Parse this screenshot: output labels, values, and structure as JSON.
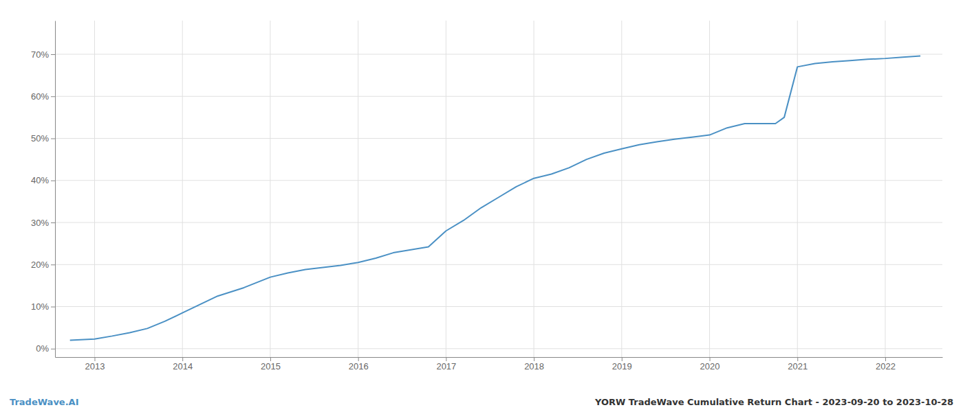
{
  "chart_data": {
    "type": "line",
    "title": "YORW TradeWave Cumulative Return Chart - 2023-09-20 to 2023-10-28",
    "annotations": [
      "TradeWave.AI"
    ],
    "x": [
      2012.72,
      2013.0,
      2013.2,
      2013.4,
      2013.6,
      2013.8,
      2014.0,
      2014.2,
      2014.4,
      2014.7,
      2015.0,
      2015.2,
      2015.4,
      2015.6,
      2015.8,
      2016.0,
      2016.2,
      2016.4,
      2016.6,
      2016.8,
      2017.0,
      2017.2,
      2017.4,
      2017.6,
      2017.8,
      2018.0,
      2018.2,
      2018.4,
      2018.6,
      2018.8,
      2019.0,
      2019.2,
      2019.4,
      2019.6,
      2019.8,
      2020.0,
      2020.2,
      2020.4,
      2020.6,
      2020.75,
      2020.85,
      2021.0,
      2021.2,
      2021.4,
      2021.6,
      2021.8,
      2022.0,
      2022.2,
      2022.4
    ],
    "values": [
      2.0,
      2.3,
      3.0,
      3.8,
      4.8,
      6.5,
      8.5,
      10.5,
      12.5,
      14.5,
      17.0,
      18.0,
      18.8,
      19.3,
      19.8,
      20.5,
      21.5,
      22.8,
      23.5,
      24.2,
      28.0,
      30.5,
      33.5,
      36.0,
      38.5,
      40.5,
      41.5,
      43.0,
      45.0,
      46.5,
      47.5,
      48.5,
      49.2,
      49.8,
      50.3,
      50.8,
      52.5,
      53.5,
      53.5,
      53.5,
      55.0,
      67.0,
      67.8,
      68.2,
      68.5,
      68.8,
      69.0,
      69.3,
      69.6
    ],
    "color": "#4a90c4",
    "xlim": [
      2012.55,
      2022.65
    ],
    "ylim": [
      -2,
      78
    ],
    "xticks": [
      2013,
      2014,
      2015,
      2016,
      2017,
      2018,
      2019,
      2020,
      2021,
      2022
    ],
    "yticks": [
      {
        "value": 0,
        "label": "0%"
      },
      {
        "value": 10,
        "label": "10%"
      },
      {
        "value": 20,
        "label": "20%"
      },
      {
        "value": 30,
        "label": "30%"
      },
      {
        "value": 40,
        "label": "40%"
      },
      {
        "value": 50,
        "label": "50%"
      },
      {
        "value": 60,
        "label": "60%"
      },
      {
        "value": 70,
        "label": "70%"
      }
    ],
    "grid": true
  }
}
